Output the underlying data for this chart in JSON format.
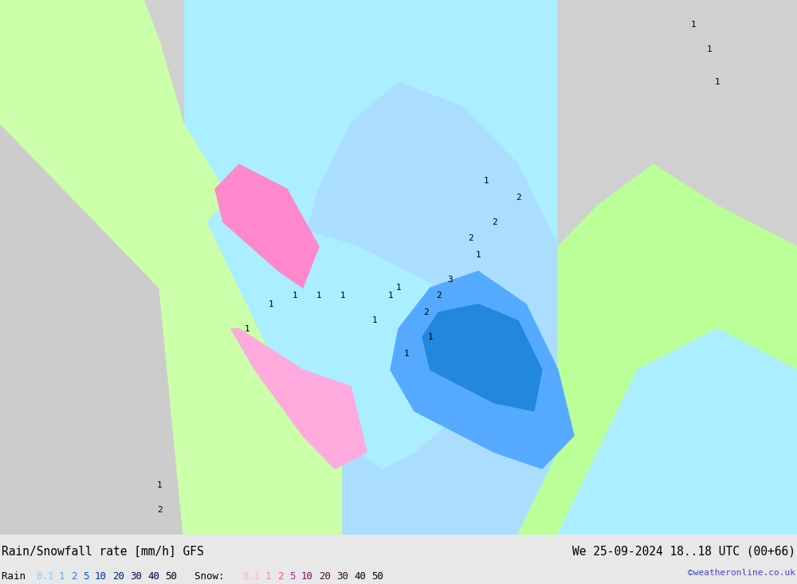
{
  "title_left": "Rain/Snowfall rate [mm/h] GFS",
  "title_right": "We 25-09-2024 18..18 UTC (00+66)",
  "copyright": "©weatheronline.co.uk",
  "legend_rain_label": "Rain",
  "legend_snow_label": "Snow:",
  "rain_values": [
    "0.1",
    "1",
    "2",
    "5",
    "10",
    "20",
    "30",
    "40",
    "50"
  ],
  "snow_values": [
    "0.1",
    "1",
    "2",
    "5",
    "10",
    "20",
    "30",
    "40",
    "50"
  ],
  "rain_colors": [
    "#aaeeff",
    "#55ccff",
    "#00aaff",
    "#0066ff",
    "#0033cc",
    "#002299",
    "#001177",
    "#000055",
    "#000033"
  ],
  "snow_colors": [
    "#ffccee",
    "#ff99dd",
    "#ff55cc",
    "#cc00aa",
    "#880077",
    "#550055",
    "#330033",
    "#110011",
    "#000000"
  ],
  "background_color": "#f0f0f0",
  "map_bg": "#ffffff",
  "fig_width": 10.0,
  "fig_height": 7.33,
  "title_fontsize": 11,
  "legend_fontsize": 9,
  "bottom_bar_height": 0.08
}
